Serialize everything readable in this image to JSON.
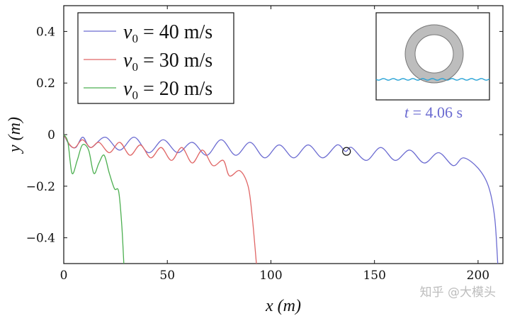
{
  "chart_data": {
    "type": "line",
    "xlabel": "x (m)",
    "ylabel": "y (m)",
    "xlim": [
      0,
      212
    ],
    "ylim": [
      -0.5,
      0.5
    ],
    "xticks": [
      0,
      50,
      100,
      150,
      200
    ],
    "xtick_labels": [
      "0",
      "50",
      "100",
      "150",
      "200"
    ],
    "yticks": [
      -0.4,
      -0.2,
      0,
      0.2,
      0.4
    ],
    "ytick_labels": [
      "−0.4",
      "−0.2",
      "0",
      "0.2",
      "0.4"
    ],
    "grid": false,
    "legend_position": "top-left",
    "series": [
      {
        "name": "v0 = 40 m/s",
        "legend_math": {
          "sym": "v",
          "sub": "0",
          "rest": " = 40 m/s"
        },
        "color": "#6b6bd1",
        "x_start": 0,
        "x_end": 209.5,
        "amplitude": 0.03,
        "period": 6.8,
        "drift_per_m": -0.0006,
        "fall_start": 193,
        "fall_power": 3,
        "points": [
          [
            0,
            0
          ],
          [
            2.8,
            -0.04
          ],
          [
            5.8,
            -0.05
          ],
          [
            9.2,
            -0.01
          ],
          [
            13,
            -0.05
          ],
          [
            20,
            -0.01
          ],
          [
            27,
            -0.06
          ],
          [
            34,
            -0.01
          ],
          [
            41,
            -0.07
          ],
          [
            48,
            -0.02
          ],
          [
            55,
            -0.07
          ],
          [
            62,
            -0.03
          ],
          [
            69,
            -0.08
          ],
          [
            76,
            -0.02
          ],
          [
            83,
            -0.08
          ],
          [
            90,
            -0.03
          ],
          [
            97,
            -0.09
          ],
          [
            104,
            -0.04
          ],
          [
            111,
            -0.09
          ],
          [
            118,
            -0.04
          ],
          [
            125,
            -0.09
          ],
          [
            132,
            -0.04
          ],
          [
            136,
            -0.065
          ],
          [
            139,
            -0.05
          ],
          [
            146,
            -0.1
          ],
          [
            153,
            -0.05
          ],
          [
            160,
            -0.1
          ],
          [
            167,
            -0.06
          ],
          [
            174,
            -0.11
          ],
          [
            181,
            -0.07
          ],
          [
            188,
            -0.12
          ],
          [
            193,
            -0.09
          ],
          [
            200,
            -0.13
          ],
          [
            205,
            -0.2
          ],
          [
            208,
            -0.32
          ],
          [
            209.5,
            -0.5
          ]
        ]
      },
      {
        "name": "v0 = 30 m/s",
        "legend_math": {
          "sym": "v",
          "sub": "0",
          "rest": " = 30 m/s"
        },
        "color": "#e06666",
        "x_start": 0,
        "x_end": 93.5,
        "points": [
          [
            0,
            0
          ],
          [
            3,
            -0.04
          ],
          [
            5.5,
            -0.05
          ],
          [
            9,
            -0.02
          ],
          [
            13,
            -0.05
          ],
          [
            17,
            -0.03
          ],
          [
            22,
            -0.07
          ],
          [
            27,
            -0.03
          ],
          [
            32,
            -0.08
          ],
          [
            37,
            -0.04
          ],
          [
            42,
            -0.09
          ],
          [
            47,
            -0.05
          ],
          [
            52,
            -0.1
          ],
          [
            57,
            -0.05
          ],
          [
            62,
            -0.11
          ],
          [
            67,
            -0.06
          ],
          [
            72,
            -0.12
          ],
          [
            77,
            -0.1
          ],
          [
            80,
            -0.16
          ],
          [
            85,
            -0.14
          ],
          [
            89,
            -0.2
          ],
          [
            91,
            -0.32
          ],
          [
            93,
            -0.5
          ]
        ]
      },
      {
        "name": "v0 = 20 m/s",
        "legend_math": {
          "sym": "v",
          "sub": "0",
          "rest": " = 20 m/s"
        },
        "color": "#4caf50",
        "x_start": 0,
        "x_end": 29,
        "points": [
          [
            0,
            0
          ],
          [
            2,
            -0.03
          ],
          [
            4,
            -0.15
          ],
          [
            6.5,
            -0.1
          ],
          [
            9,
            -0.04
          ],
          [
            12,
            -0.06
          ],
          [
            14.5,
            -0.15
          ],
          [
            17,
            -0.11
          ],
          [
            19.5,
            -0.08
          ],
          [
            22,
            -0.15
          ],
          [
            24.5,
            -0.21
          ],
          [
            26.5,
            -0.22
          ],
          [
            28,
            -0.35
          ],
          [
            29,
            -0.5
          ]
        ]
      }
    ],
    "annotations": [
      {
        "type": "marker",
        "shape": "circle",
        "x": 136.5,
        "y": -0.065
      }
    ],
    "inset": {
      "label": "t = 4.06 s",
      "label_math": {
        "sym": "t",
        "rest": " = 4.06 s"
      },
      "label_color": "#6b6bd1",
      "ring_color": "#bdbdbd",
      "water_color": "#29a3d6"
    }
  },
  "watermark": "知乎 @大模头"
}
